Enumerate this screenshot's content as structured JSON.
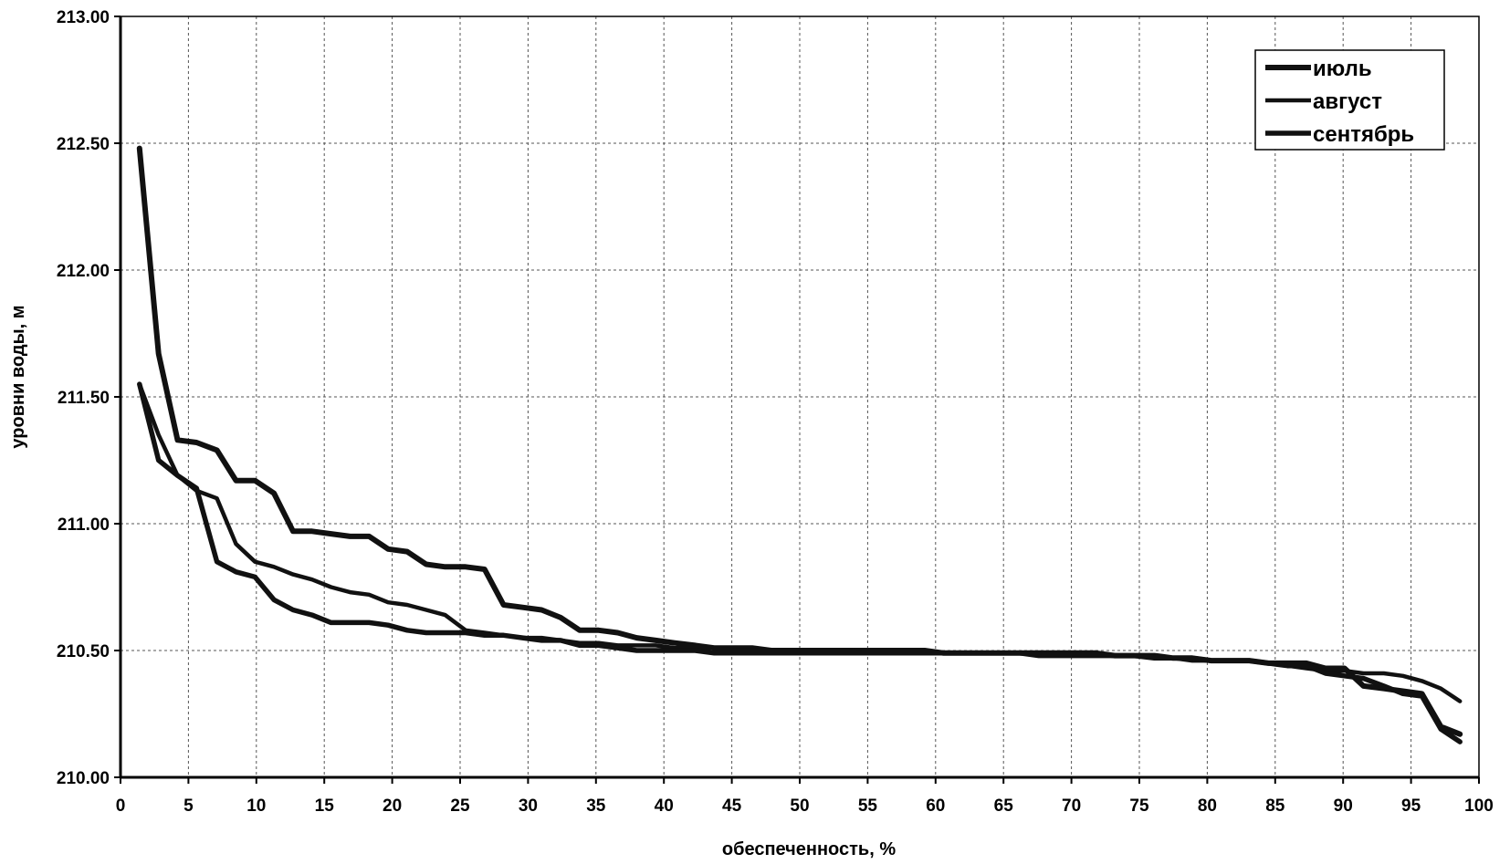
{
  "chart_data": {
    "type": "line",
    "xlabel": "обеспеченность, %",
    "ylabel": "уровни воды, м",
    "xlim": [
      0,
      100
    ],
    "ylim": [
      210.0,
      213.0
    ],
    "x_ticks": [
      "0",
      "5",
      "10",
      "15",
      "20",
      "25",
      "30",
      "35",
      "40",
      "45",
      "50",
      "55",
      "60",
      "65",
      "70",
      "75",
      "80",
      "85",
      "90",
      "95",
      "100"
    ],
    "y_ticks": [
      "210.00",
      "210.50",
      "211.00",
      "211.50",
      "212.00",
      "212.50",
      "213.00"
    ],
    "grid": true,
    "legend_position": "top-right",
    "series_color": "#111111",
    "series": [
      {
        "name": "июль",
        "points": [
          [
            1.4,
            212.48
          ],
          [
            2.8,
            211.67
          ],
          [
            4.2,
            211.33
          ],
          [
            5.6,
            211.32
          ],
          [
            7.1,
            211.29
          ],
          [
            8.5,
            211.17
          ],
          [
            9.9,
            211.17
          ],
          [
            11.3,
            211.12
          ],
          [
            12.7,
            210.97
          ],
          [
            14.1,
            210.97
          ],
          [
            15.5,
            210.96
          ],
          [
            16.9,
            210.95
          ],
          [
            18.3,
            210.95
          ],
          [
            19.7,
            210.9
          ],
          [
            21.1,
            210.89
          ],
          [
            22.5,
            210.84
          ],
          [
            23.9,
            210.83
          ],
          [
            25.4,
            210.83
          ],
          [
            26.8,
            210.82
          ],
          [
            28.2,
            210.68
          ],
          [
            29.6,
            210.67
          ],
          [
            31.0,
            210.66
          ],
          [
            32.4,
            210.63
          ],
          [
            33.8,
            210.58
          ],
          [
            35.2,
            210.58
          ],
          [
            36.6,
            210.57
          ],
          [
            38.0,
            210.55
          ],
          [
            39.4,
            210.54
          ],
          [
            40.8,
            210.53
          ],
          [
            42.3,
            210.52
          ],
          [
            43.7,
            210.51
          ],
          [
            45.1,
            210.51
          ],
          [
            46.5,
            210.51
          ],
          [
            47.9,
            210.5
          ],
          [
            49.3,
            210.5
          ],
          [
            50.7,
            210.5
          ],
          [
            52.1,
            210.5
          ],
          [
            53.5,
            210.5
          ],
          [
            54.9,
            210.5
          ],
          [
            56.3,
            210.5
          ],
          [
            57.7,
            210.5
          ],
          [
            59.2,
            210.5
          ],
          [
            60.6,
            210.49
          ],
          [
            62.0,
            210.49
          ],
          [
            63.4,
            210.49
          ],
          [
            64.8,
            210.49
          ],
          [
            66.2,
            210.49
          ],
          [
            67.6,
            210.49
          ],
          [
            69.0,
            210.49
          ],
          [
            70.4,
            210.49
          ],
          [
            71.8,
            210.49
          ],
          [
            73.2,
            210.48
          ],
          [
            74.6,
            210.48
          ],
          [
            76.1,
            210.48
          ],
          [
            77.5,
            210.47
          ],
          [
            78.9,
            210.47
          ],
          [
            80.3,
            210.46
          ],
          [
            81.7,
            210.46
          ],
          [
            83.1,
            210.46
          ],
          [
            84.5,
            210.45
          ],
          [
            85.9,
            210.45
          ],
          [
            87.3,
            210.45
          ],
          [
            88.7,
            210.43
          ],
          [
            90.1,
            210.43
          ],
          [
            91.5,
            210.36
          ],
          [
            93.0,
            210.35
          ],
          [
            94.4,
            210.34
          ],
          [
            95.8,
            210.33
          ],
          [
            97.2,
            210.2
          ],
          [
            98.6,
            210.17
          ]
        ]
      },
      {
        "name": "август",
        "points": [
          [
            1.4,
            211.55
          ],
          [
            2.8,
            211.35
          ],
          [
            4.2,
            211.19
          ],
          [
            5.6,
            211.13
          ],
          [
            7.1,
            211.1
          ],
          [
            8.5,
            210.92
          ],
          [
            9.9,
            210.85
          ],
          [
            11.3,
            210.83
          ],
          [
            12.7,
            210.8
          ],
          [
            14.1,
            210.78
          ],
          [
            15.5,
            210.75
          ],
          [
            16.9,
            210.73
          ],
          [
            18.3,
            210.72
          ],
          [
            19.7,
            210.69
          ],
          [
            21.1,
            210.68
          ],
          [
            22.5,
            210.66
          ],
          [
            23.9,
            210.64
          ],
          [
            25.4,
            210.58
          ],
          [
            26.8,
            210.57
          ],
          [
            28.2,
            210.56
          ],
          [
            29.6,
            210.55
          ],
          [
            31.0,
            210.55
          ],
          [
            32.4,
            210.54
          ],
          [
            33.8,
            210.53
          ],
          [
            35.2,
            210.53
          ],
          [
            36.6,
            210.52
          ],
          [
            38.0,
            210.52
          ],
          [
            39.4,
            210.52
          ],
          [
            40.8,
            210.51
          ],
          [
            42.3,
            210.51
          ],
          [
            43.7,
            210.51
          ],
          [
            45.1,
            210.5
          ],
          [
            46.5,
            210.5
          ],
          [
            47.9,
            210.5
          ],
          [
            49.3,
            210.5
          ],
          [
            50.7,
            210.5
          ],
          [
            52.1,
            210.5
          ],
          [
            53.5,
            210.5
          ],
          [
            54.9,
            210.49
          ],
          [
            56.3,
            210.49
          ],
          [
            57.7,
            210.49
          ],
          [
            59.2,
            210.49
          ],
          [
            60.6,
            210.49
          ],
          [
            62.0,
            210.49
          ],
          [
            63.4,
            210.49
          ],
          [
            64.8,
            210.49
          ],
          [
            66.2,
            210.49
          ],
          [
            67.6,
            210.49
          ],
          [
            69.0,
            210.48
          ],
          [
            70.4,
            210.48
          ],
          [
            71.8,
            210.48
          ],
          [
            73.2,
            210.48
          ],
          [
            74.6,
            210.48
          ],
          [
            76.1,
            210.47
          ],
          [
            77.5,
            210.47
          ],
          [
            78.9,
            210.46
          ],
          [
            80.3,
            210.46
          ],
          [
            81.7,
            210.46
          ],
          [
            83.1,
            210.46
          ],
          [
            84.5,
            210.45
          ],
          [
            85.9,
            210.44
          ],
          [
            87.3,
            210.43
          ],
          [
            88.7,
            210.42
          ],
          [
            90.1,
            210.42
          ],
          [
            91.5,
            210.41
          ],
          [
            93.0,
            210.41
          ],
          [
            94.4,
            210.4
          ],
          [
            95.8,
            210.38
          ],
          [
            97.2,
            210.35
          ],
          [
            98.6,
            210.3
          ]
        ]
      },
      {
        "name": "сентябрь",
        "points": [
          [
            1.4,
            211.55
          ],
          [
            2.8,
            211.25
          ],
          [
            4.2,
            211.19
          ],
          [
            5.6,
            211.14
          ],
          [
            7.1,
            210.85
          ],
          [
            8.5,
            210.81
          ],
          [
            9.9,
            210.79
          ],
          [
            11.3,
            210.7
          ],
          [
            12.7,
            210.66
          ],
          [
            14.1,
            210.64
          ],
          [
            15.5,
            210.61
          ],
          [
            16.9,
            210.61
          ],
          [
            18.3,
            210.61
          ],
          [
            19.7,
            210.6
          ],
          [
            21.1,
            210.58
          ],
          [
            22.5,
            210.57
          ],
          [
            23.9,
            210.57
          ],
          [
            25.4,
            210.57
          ],
          [
            26.8,
            210.56
          ],
          [
            28.2,
            210.56
          ],
          [
            29.6,
            210.55
          ],
          [
            31.0,
            210.54
          ],
          [
            32.4,
            210.54
          ],
          [
            33.8,
            210.52
          ],
          [
            35.2,
            210.52
          ],
          [
            36.6,
            210.51
          ],
          [
            38.0,
            210.5
          ],
          [
            39.4,
            210.5
          ],
          [
            40.8,
            210.5
          ],
          [
            42.3,
            210.5
          ],
          [
            43.7,
            210.49
          ],
          [
            45.1,
            210.49
          ],
          [
            46.5,
            210.49
          ],
          [
            47.9,
            210.49
          ],
          [
            49.3,
            210.49
          ],
          [
            50.7,
            210.49
          ],
          [
            52.1,
            210.49
          ],
          [
            53.5,
            210.49
          ],
          [
            54.9,
            210.49
          ],
          [
            56.3,
            210.49
          ],
          [
            57.7,
            210.49
          ],
          [
            59.2,
            210.49
          ],
          [
            60.6,
            210.49
          ],
          [
            62.0,
            210.49
          ],
          [
            63.4,
            210.49
          ],
          [
            64.8,
            210.49
          ],
          [
            66.2,
            210.49
          ],
          [
            67.6,
            210.48
          ],
          [
            69.0,
            210.48
          ],
          [
            70.4,
            210.48
          ],
          [
            71.8,
            210.48
          ],
          [
            73.2,
            210.48
          ],
          [
            74.6,
            210.48
          ],
          [
            76.1,
            210.47
          ],
          [
            77.5,
            210.47
          ],
          [
            78.9,
            210.47
          ],
          [
            80.3,
            210.46
          ],
          [
            81.7,
            210.46
          ],
          [
            83.1,
            210.46
          ],
          [
            84.5,
            210.45
          ],
          [
            85.9,
            210.44
          ],
          [
            87.3,
            210.44
          ],
          [
            88.7,
            210.41
          ],
          [
            90.1,
            210.4
          ],
          [
            91.5,
            210.39
          ],
          [
            93.0,
            210.36
          ],
          [
            94.4,
            210.33
          ],
          [
            95.8,
            210.32
          ],
          [
            97.2,
            210.19
          ],
          [
            98.6,
            210.14
          ]
        ]
      }
    ]
  }
}
